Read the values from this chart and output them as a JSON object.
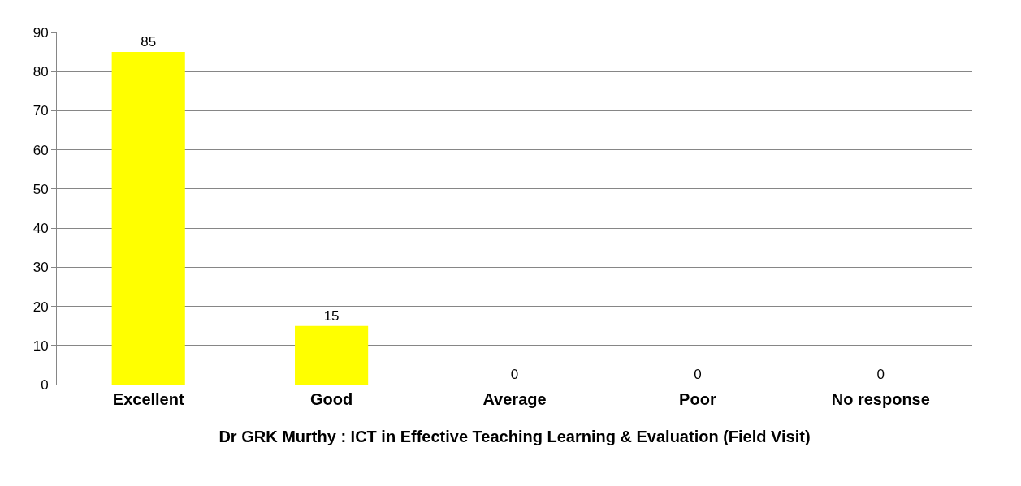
{
  "chart_data": {
    "type": "bar",
    "xlabel": "Dr GRK Murthy : ICT in Effective Teaching Learning & Evaluation (Field Visit)",
    "categories": [
      "Excellent",
      "Good",
      "Average",
      "Poor",
      "No response"
    ],
    "values": [
      85,
      15,
      0,
      0,
      0
    ],
    "color": "#ffff00",
    "ylim": [
      0,
      90
    ],
    "yticks": [
      0,
      10,
      20,
      30,
      40,
      50,
      60,
      70,
      80,
      90
    ],
    "grid": "y",
    "data_labels": true
  }
}
